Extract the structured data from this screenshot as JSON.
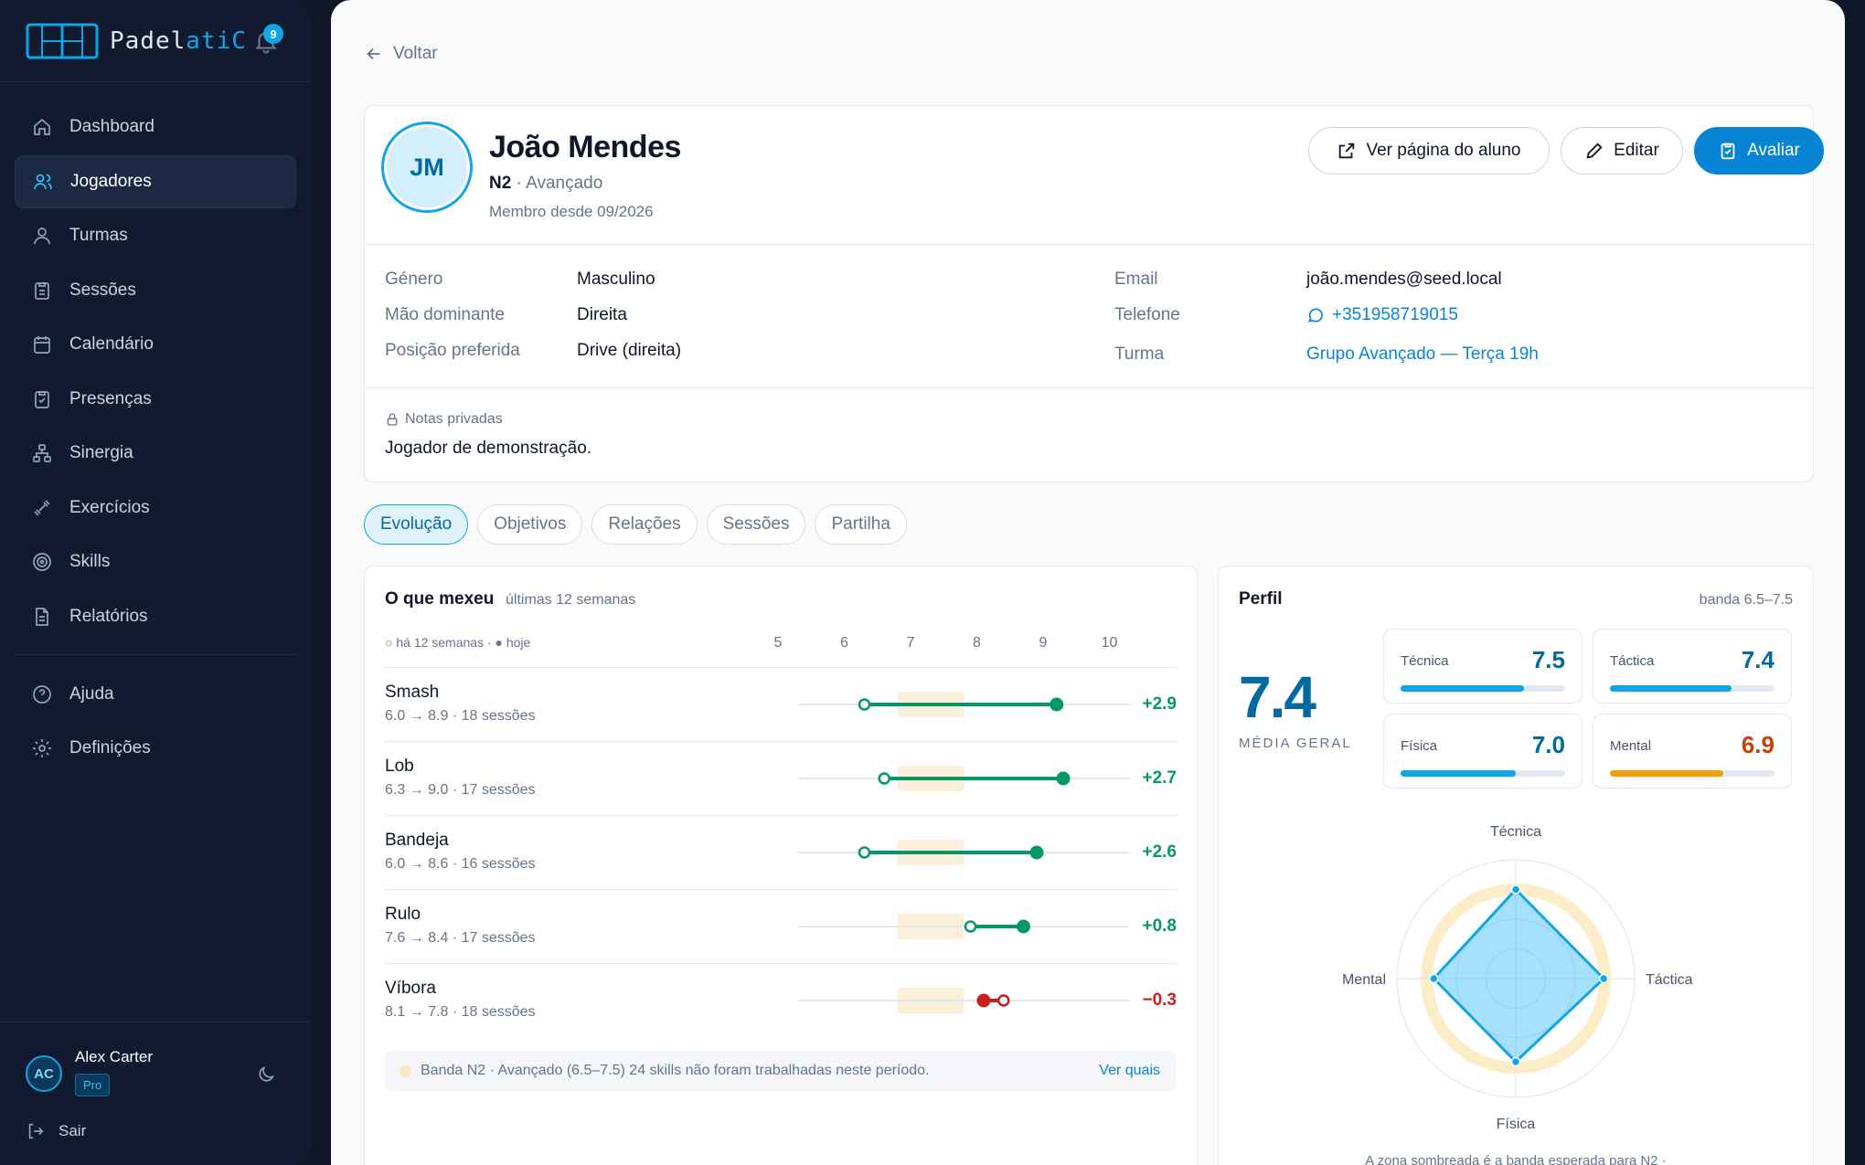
{
  "brand": {
    "name_a": "Padel",
    "name_b": "atiC",
    "notifications": "9"
  },
  "nav": [
    {
      "label": "Dashboard",
      "icon": "home-icon",
      "active": false
    },
    {
      "label": "Jogadores",
      "icon": "users-icon",
      "active": true
    },
    {
      "label": "Turmas",
      "icon": "user-icon",
      "active": false
    },
    {
      "label": "Sessões",
      "icon": "clipboard-icon",
      "active": false
    },
    {
      "label": "Calendário",
      "icon": "calendar-icon",
      "active": false
    },
    {
      "label": "Presenças",
      "icon": "clipboard-check-icon",
      "active": false
    },
    {
      "label": "Sinergia",
      "icon": "network-icon",
      "active": false
    },
    {
      "label": "Exercícios",
      "icon": "dumbbell-icon",
      "active": false
    },
    {
      "label": "Skills",
      "icon": "target-icon",
      "active": false
    },
    {
      "label": "Relatórios",
      "icon": "file-icon",
      "active": false
    },
    {
      "label": "Ajuda",
      "icon": "help-icon",
      "active": false
    },
    {
      "label": "Definições",
      "icon": "gear-icon",
      "active": false
    }
  ],
  "user": {
    "initials": "AC",
    "name": "Alex Carter",
    "plan": "Pro",
    "logout": "Sair"
  },
  "back": "Voltar",
  "player": {
    "initials": "JM",
    "name": "João Mendes",
    "level": "N2",
    "level_name": "· Avançado",
    "since": "Membro desde 09/2026",
    "actions": {
      "view": "Ver página do aluno",
      "edit": "Editar",
      "evaluate": "Avaliar"
    },
    "fields": {
      "gender_l": "Género",
      "gender_v": "Masculino",
      "hand_l": "Mão dominante",
      "hand_v": "Direita",
      "pos_l": "Posição preferida",
      "pos_v": "Drive (direita)",
      "email_l": "Email",
      "email_v": "joão.mendes@seed.local",
      "phone_l": "Telefone",
      "phone_v": "+351958719015",
      "group_l": "Turma",
      "group_v": "Grupo Avançado — Terça 19h"
    },
    "notes_label": "Notas privadas",
    "notes": "Jogador de demonstração."
  },
  "tabs": [
    "Evolução",
    "Objetivos",
    "Relações",
    "Sessões",
    "Partilha"
  ],
  "evolution": {
    "title": "O que mexeu",
    "period": "últimas 12 semanas",
    "legend": "○ há 12 semanas · ● hoje",
    "axis": [
      "5",
      "6",
      "7",
      "8",
      "9",
      "10"
    ],
    "band": [
      6.5,
      7.5
    ],
    "skills": [
      {
        "name": "Smash",
        "meta": "6.0 → 8.9 · 18 sessões",
        "from": 6.0,
        "to": 8.9,
        "delta": "+2.9"
      },
      {
        "name": "Lob",
        "meta": "6.3 → 9.0 · 17 sessões",
        "from": 6.3,
        "to": 9.0,
        "delta": "+2.7"
      },
      {
        "name": "Bandeja",
        "meta": "6.0 → 8.6 · 16 sessões",
        "from": 6.0,
        "to": 8.6,
        "delta": "+2.6"
      },
      {
        "name": "Rulo",
        "meta": "7.6 → 8.4 · 17 sessões",
        "from": 7.6,
        "to": 8.4,
        "delta": "+0.8"
      },
      {
        "name": "Víbora",
        "meta": "8.1 → 7.8 · 18 sessões",
        "from": 8.1,
        "to": 7.8,
        "delta": "−0.3"
      }
    ],
    "footer": "Banda N2 · Avançado (6.5–7.5)   24 skills não foram trabalhadas neste período.",
    "footer_link": "Ver quais"
  },
  "profile": {
    "title": "Perfil",
    "band": "banda 6.5–7.5",
    "avg": "7.4",
    "avg_label": "MÉDIA GERAL",
    "scores": [
      {
        "label": "Técnica",
        "value": "7.5",
        "fill": 0.75,
        "color": "#0ea5e9",
        "text": "#0369a1"
      },
      {
        "label": "Táctica",
        "value": "7.4",
        "fill": 0.74,
        "color": "#0ea5e9",
        "text": "#0369a1"
      },
      {
        "label": "Física",
        "value": "7.0",
        "fill": 0.7,
        "color": "#0ea5e9",
        "text": "#0369a1"
      },
      {
        "label": "Mental",
        "value": "6.9",
        "fill": 0.69,
        "color": "#f59e0b",
        "text": "#c2410c"
      }
    ],
    "radar_labels": {
      "top": "Técnica",
      "right": "Táctica",
      "bottom": "Física",
      "left": "Mental"
    },
    "caption": "A zona sombreada é a banda esperada para N2 ·"
  }
}
